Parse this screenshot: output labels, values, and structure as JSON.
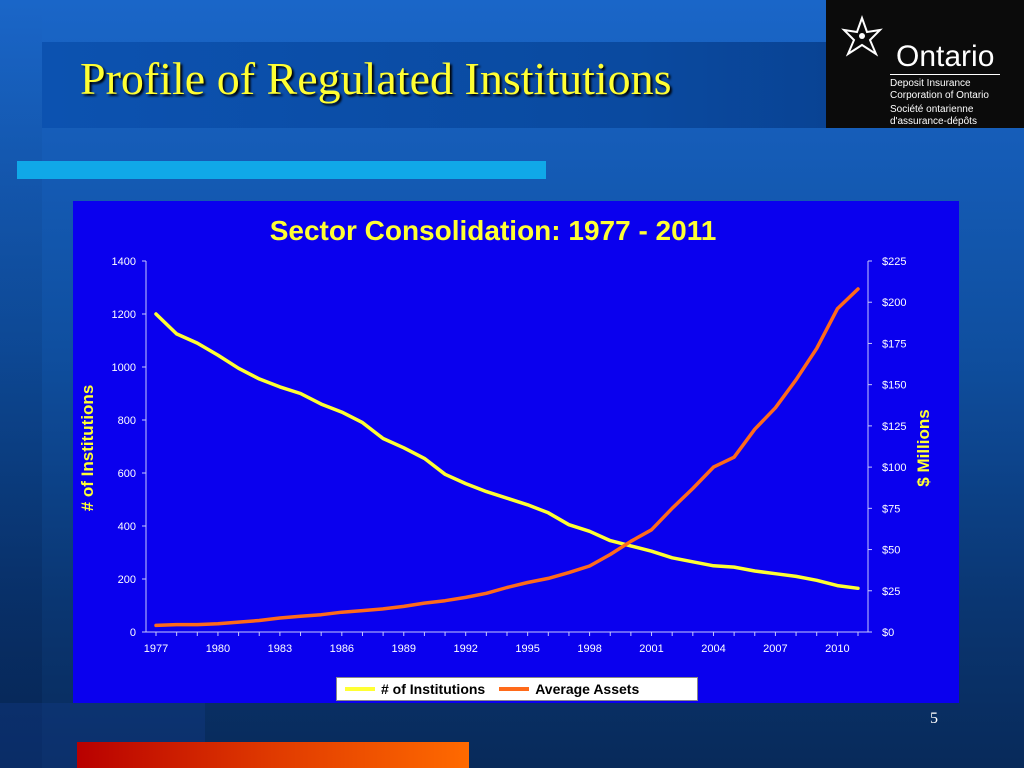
{
  "slide": {
    "title": "Profile of Regulated Institutions",
    "page_number": "5"
  },
  "logo": {
    "name": "Ontario",
    "line1": "Deposit Insurance",
    "line2": "Corporation of Ontario",
    "line3": "Société ontarienne",
    "line4": "d'assurance-dépôts"
  },
  "colors": {
    "series_institutions": "#ffff33",
    "series_assets": "#ff6a1a",
    "chart_bg": "#0a00ee",
    "axis_text": "#ffffff",
    "title_text": "#ffff33"
  },
  "chart_data": {
    "type": "line",
    "title": "Sector Consolidation: 1977 - 2011",
    "ylabel": "# of Institutions",
    "y2label": "$ Millions",
    "ylim": [
      0,
      1400
    ],
    "y2lim": [
      0,
      225
    ],
    "yticks": [
      "0",
      "200",
      "400",
      "600",
      "800",
      "1000",
      "1200",
      "1400"
    ],
    "y2ticks": [
      "$0",
      "$25",
      "$50",
      "$75",
      "$100",
      "$125",
      "$150",
      "$175",
      "$200",
      "$225"
    ],
    "xticks": [
      "1977",
      "1980",
      "1983",
      "1986",
      "1989",
      "1992",
      "1995",
      "1998",
      "2001",
      "2004",
      "2007",
      "2010"
    ],
    "x": [
      1977,
      1978,
      1979,
      1980,
      1981,
      1982,
      1983,
      1984,
      1985,
      1986,
      1987,
      1988,
      1989,
      1990,
      1991,
      1992,
      1993,
      1994,
      1995,
      1996,
      1997,
      1998,
      1999,
      2000,
      2001,
      2002,
      2003,
      2004,
      2005,
      2006,
      2007,
      2008,
      2009,
      2010,
      2011
    ],
    "series": [
      {
        "name": "# of Institutions",
        "axis": "left",
        "values": [
          1200,
          1125,
          1090,
          1045,
          995,
          955,
          925,
          900,
          860,
          830,
          790,
          730,
          695,
          655,
          595,
          560,
          530,
          505,
          480,
          450,
          405,
          380,
          345,
          325,
          305,
          280,
          265,
          250,
          245,
          230,
          220,
          210,
          195,
          175,
          165
        ]
      },
      {
        "name": "Average Assets",
        "axis": "right",
        "values": [
          4,
          4.5,
          4.5,
          5,
          6,
          7,
          8.5,
          9.5,
          10.5,
          12,
          13,
          14,
          15.5,
          17.5,
          19,
          21,
          23.5,
          27,
          30,
          32.5,
          36,
          40,
          47,
          55,
          62,
          75,
          87,
          100,
          106,
          123,
          136,
          153,
          172,
          196,
          208
        ]
      }
    ],
    "legend_position": "bottom",
    "grid": false
  }
}
